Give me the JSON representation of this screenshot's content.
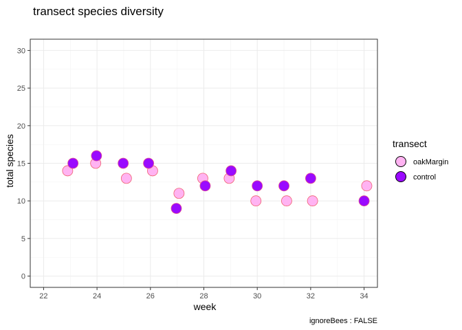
{
  "chart_data": {
    "type": "scatter",
    "title": "transect species diversity",
    "xlabel": "week",
    "ylabel": "total species",
    "caption": "ignoreBees : FALSE",
    "xlim": [
      21.5,
      34.5
    ],
    "ylim": [
      -1.5,
      31.5
    ],
    "x_ticks": [
      22,
      24,
      26,
      28,
      30,
      32,
      34
    ],
    "y_ticks": [
      0,
      5,
      10,
      15,
      20,
      25,
      30
    ],
    "grid": true,
    "legend": {
      "title": "transect",
      "position": "right"
    },
    "series": [
      {
        "name": "oakMargin",
        "color": "#ffb3f2",
        "stroke": "#f06070",
        "points": [
          {
            "x": 23,
            "y": 14
          },
          {
            "x": 24,
            "y": 15
          },
          {
            "x": 25,
            "y": 13
          },
          {
            "x": 26,
            "y": 14
          },
          {
            "x": 27,
            "y": 11
          },
          {
            "x": 28,
            "y": 13
          },
          {
            "x": 29,
            "y": 13
          },
          {
            "x": 30,
            "y": 10
          },
          {
            "x": 31,
            "y": 10
          },
          {
            "x": 32,
            "y": 10
          },
          {
            "x": 34,
            "y": 12
          }
        ]
      },
      {
        "name": "control",
        "color": "#9a0aff",
        "stroke": "#e0508a",
        "points": [
          {
            "x": 23,
            "y": 15
          },
          {
            "x": 24,
            "y": 16
          },
          {
            "x": 25,
            "y": 15
          },
          {
            "x": 26,
            "y": 15
          },
          {
            "x": 27,
            "y": 9
          },
          {
            "x": 28,
            "y": 12
          },
          {
            "x": 29,
            "y": 14
          },
          {
            "x": 30,
            "y": 12
          },
          {
            "x": 31,
            "y": 12
          },
          {
            "x": 32,
            "y": 13
          },
          {
            "x": 34,
            "y": 10
          }
        ]
      }
    ]
  }
}
